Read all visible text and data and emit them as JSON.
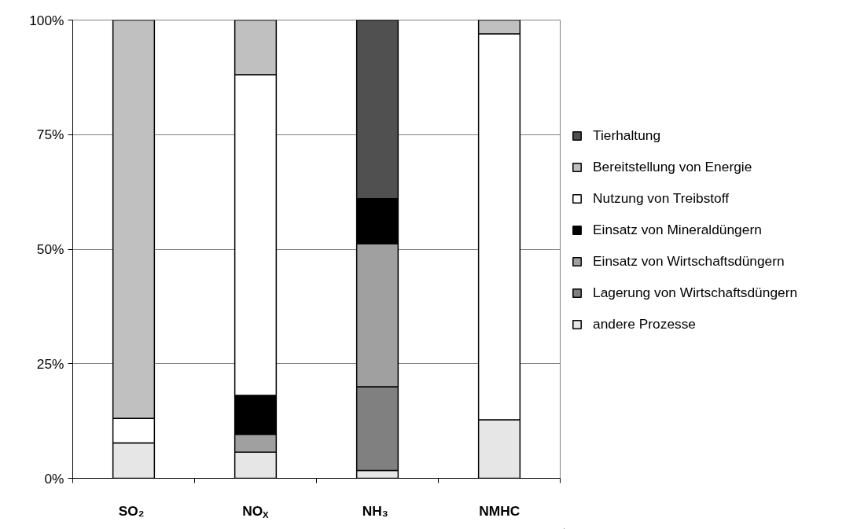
{
  "chart_data": {
    "type": "bar",
    "stacked": true,
    "categories": [
      "SO₂",
      "NO$_{X}$",
      "NH₃",
      "NMHC"
    ],
    "series": [
      {
        "name": "andere Prozesse",
        "color": "#e6e6e6",
        "values": [
          7.7,
          5.7,
          1.7,
          12.8
        ]
      },
      {
        "name": "Lagerung von Wirtschaftsdüngern",
        "color": "#808080",
        "values": [
          null,
          null,
          18.3,
          null
        ]
      },
      {
        "name": "Einsatz von Wirtschaftsdüngern",
        "color": "#a0a0a0",
        "values": [
          null,
          3.9,
          31.2,
          null
        ]
      },
      {
        "name": "Einsatz von Mineraldüngern",
        "color": "#000000",
        "values": [
          null,
          8.5,
          9.8,
          null
        ]
      },
      {
        "name": "Nutzung von Treibstoff",
        "color": "#ffffff",
        "values": [
          5.4,
          70.0,
          null,
          84.2
        ]
      },
      {
        "name": "Bereitstellung von Energie",
        "color": "#c0c0c0",
        "values": [
          86.9,
          11.9,
          null,
          3.0
        ]
      },
      {
        "name": "Tierhaltung",
        "color": "#505050",
        "values": [
          null,
          null,
          39.0,
          null
        ]
      }
    ],
    "ylim": [
      0,
      100
    ],
    "yticks": [
      {
        "value": 0,
        "label": "0%"
      },
      {
        "value": 25,
        "label": "25%"
      },
      {
        "value": 50,
        "label": "50%"
      },
      {
        "value": 75,
        "label": "75%"
      },
      {
        "value": 100,
        "label": "100%"
      }
    ],
    "grid": "y",
    "legend": "right"
  }
}
